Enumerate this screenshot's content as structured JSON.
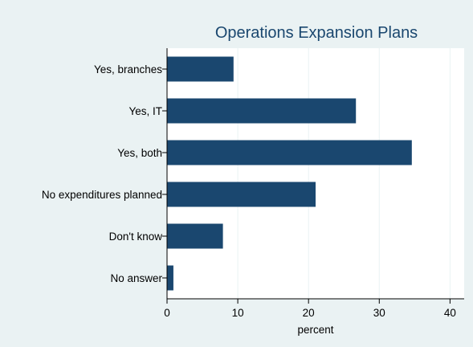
{
  "chart_data": {
    "type": "bar",
    "orientation": "horizontal",
    "title": "Operations Expansion Plans",
    "xlabel": "percent",
    "ylabel": "",
    "categories": [
      "Yes, branches",
      "Yes, IT",
      "Yes, both",
      "No expenditures planned",
      "Don't know",
      "No answer"
    ],
    "values": [
      9.4,
      26.7,
      34.6,
      21.0,
      7.9,
      0.9
    ],
    "xlim": [
      0,
      42
    ],
    "xticks": [
      0,
      10,
      20,
      30,
      40
    ],
    "grid": "vertical",
    "legend": "none",
    "colors": {
      "bar": "#1a476f",
      "plot_background": "#ffffff",
      "page_background": "#eaf2f3",
      "grid": "#eaf2f3",
      "title": "#1a476f"
    }
  }
}
